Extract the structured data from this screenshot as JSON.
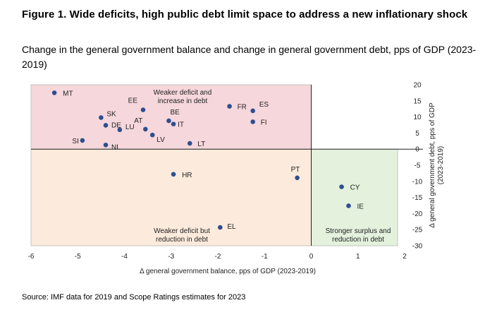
{
  "title": "Figure 1. Wide deficits, high public debt limit space to address a new inflationary shock",
  "subtitle": "Change in the general government balance and change in general government debt, pps of GDP (2023-2019)",
  "source": "Source: IMF data for 2019 and Scope Ratings estimates for 2023",
  "colors": {
    "point": "#2e4f8f",
    "quadrant_top_left": "#f6d7dc",
    "quadrant_bottom_left": "#fcebdc",
    "quadrant_bottom_right": "#e3f1dd",
    "quadrant_border": "#b8b8b8",
    "axis": "#555555"
  },
  "chart_data": {
    "type": "scatter",
    "xlabel": "Δ general government balance, pps of GDP (2023-2019)",
    "ylabel": "Δ general government debt, pps of GDP (2023-2019)",
    "xlim": [
      -6,
      2
    ],
    "ylim": [
      -30,
      20
    ],
    "x_ticks": [
      -6,
      -5,
      -4,
      -3,
      -2,
      -1,
      0,
      1,
      2
    ],
    "y_ticks": [
      20,
      15,
      10,
      5,
      0,
      -5,
      -10,
      -15,
      -20,
      -25,
      -30
    ],
    "y_axis_position": "right",
    "grid": false,
    "quadrant_labels": [
      {
        "text": [
          "Weaker deficit and",
          "increase in debt"
        ]
      },
      {
        "text": [
          "Weaker deficit but",
          "reduction in debt"
        ]
      },
      {
        "text": [
          "Stronger surplus and",
          "reduction in debt"
        ]
      }
    ],
    "points": [
      {
        "label": "MT",
        "x": -5.5,
        "y": 17.5
      },
      {
        "label": "EE",
        "x": -3.6,
        "y": 12.2
      },
      {
        "label": "SK",
        "x": -4.5,
        "y": 9.8
      },
      {
        "label": "DE",
        "x": -4.4,
        "y": 7.4
      },
      {
        "label": "LU",
        "x": -4.1,
        "y": 6.0
      },
      {
        "label": "SI",
        "x": -4.9,
        "y": 2.7
      },
      {
        "label": "NL",
        "x": -4.4,
        "y": 1.3
      },
      {
        "label": "AT",
        "x": -3.55,
        "y": 6.2
      },
      {
        "label": "LV",
        "x": -3.4,
        "y": 4.4
      },
      {
        "label": "BE",
        "x": -3.05,
        "y": 8.8
      },
      {
        "label": "IT",
        "x": -2.95,
        "y": 7.8
      },
      {
        "label": "LT",
        "x": -2.6,
        "y": 1.8
      },
      {
        "label": "FR",
        "x": -1.75,
        "y": 13.3
      },
      {
        "label": "ES",
        "x": -1.25,
        "y": 11.9
      },
      {
        "label": "FI",
        "x": -1.25,
        "y": 8.5
      },
      {
        "label": "HR",
        "x": -2.95,
        "y": -7.8
      },
      {
        "label": "PT",
        "x": -0.3,
        "y": -8.9
      },
      {
        "label": "CY",
        "x": 0.65,
        "y": -11.7
      },
      {
        "label": "IE",
        "x": 0.8,
        "y": -17.6
      },
      {
        "label": "EL",
        "x": -1.95,
        "y": -24.3
      }
    ]
  }
}
